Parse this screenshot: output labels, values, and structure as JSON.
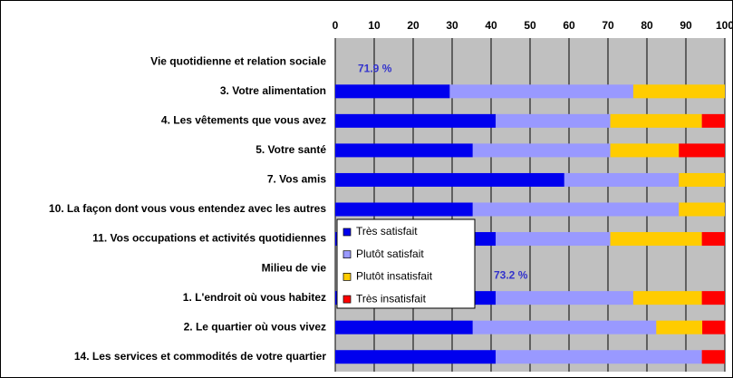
{
  "chart_data": {
    "type": "stacked-barh",
    "categories": [
      "Vie quotidienne et relation sociale",
      "3. Votre alimentation",
      "4. Les vêtements que vous avez",
      "5. Votre santé",
      "7. Vos amis",
      "10. La façon dont vous vous entendez avec les autres",
      "11. Vos occupations et activités quotidiennes",
      "Milieu de vie",
      "1. L'endroit où vous habitez",
      "2. Le quartier où vous vivez",
      "14. Les services et commodités de votre quartier"
    ],
    "series": [
      {
        "name": "Très satisfait",
        "color": "#0000ee",
        "values": [
          null,
          29.4,
          41.2,
          35.3,
          58.8,
          35.3,
          41.2,
          null,
          41.2,
          35.3,
          41.2
        ]
      },
      {
        "name": "Plutôt satisfait",
        "color": "#9999ff",
        "values": [
          null,
          47.1,
          29.4,
          35.3,
          29.4,
          52.9,
          29.4,
          null,
          35.3,
          47.1,
          52.9
        ]
      },
      {
        "name": "Plutôt insatisfait",
        "color": "#ffcc00",
        "values": [
          null,
          23.5,
          23.5,
          17.6,
          11.8,
          11.8,
          23.5,
          null,
          17.6,
          11.8,
          0
        ]
      },
      {
        "name": "Très insatisfait",
        "color": "#ff0000",
        "values": [
          null,
          0,
          5.9,
          11.8,
          0,
          0,
          5.9,
          null,
          5.9,
          5.9,
          5.9
        ]
      }
    ],
    "xlim": [
      0,
      100
    ],
    "xticks": [
      0,
      10,
      20,
      30,
      40,
      50,
      60,
      70,
      80,
      90,
      100
    ],
    "grid": true,
    "annotations": [
      "71.9 %",
      "73.2 %"
    ]
  }
}
